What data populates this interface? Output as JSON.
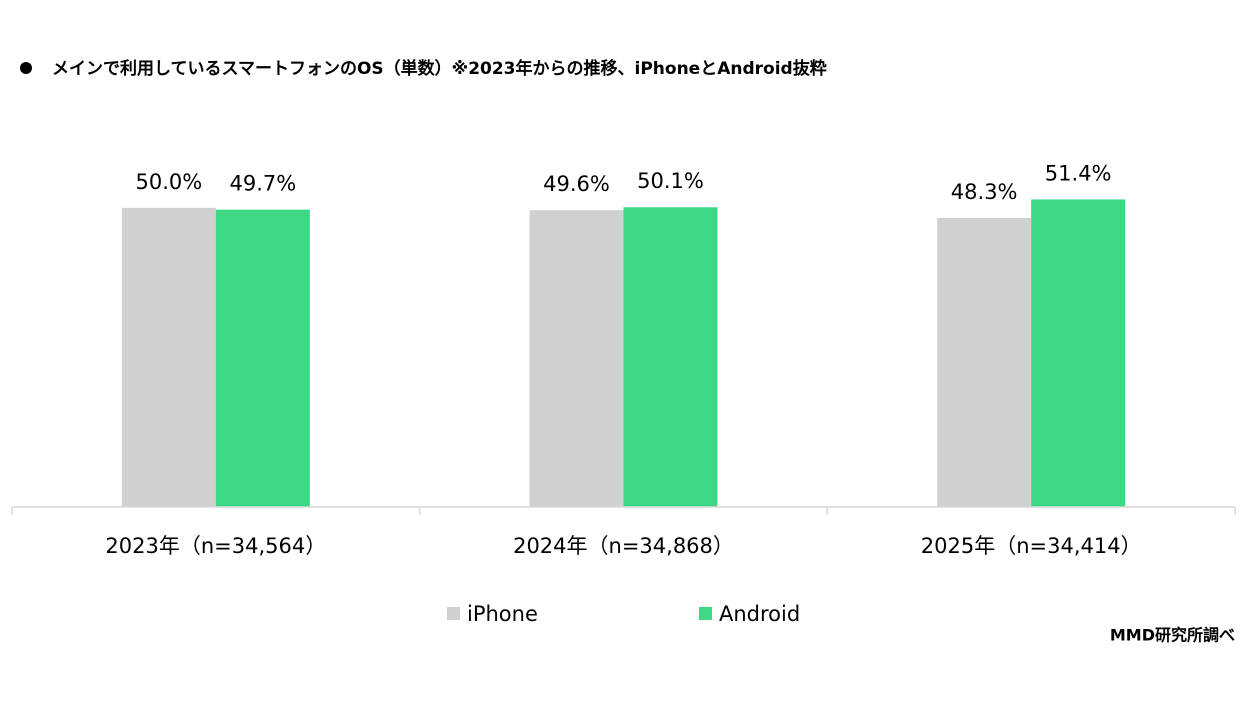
{
  "chart_data": {
    "type": "bar",
    "title": "メインで利用しているスマートフォンのOS（単数）※2023年からの推移、iPhoneとAndroid抜粋",
    "categories": [
      "2023年（n=34,564）",
      "2024年（n=34,868）",
      "2025年（n=34,414）"
    ],
    "series": [
      {
        "name": "iPhone",
        "color": "#d0d0d0",
        "values": [
          50.0,
          49.6,
          48.3
        ],
        "value_labels": [
          "50.0%",
          "49.6%",
          "48.3%"
        ]
      },
      {
        "name": "Android",
        "color": "#3dd886",
        "values": [
          49.7,
          50.1,
          51.4
        ],
        "value_labels": [
          "49.7%",
          "50.1%",
          "51.4%"
        ]
      }
    ],
    "ylim": [
      0,
      60
    ],
    "source": "MMD研究所調べ"
  }
}
